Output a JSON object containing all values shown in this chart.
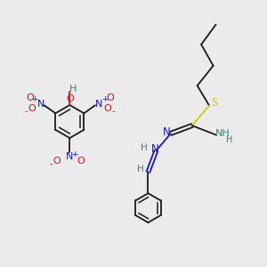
{
  "background_color": "#ebebeb",
  "fig_width": 3.0,
  "fig_height": 3.0,
  "dpi": 100,
  "bond_color": "#1a1a1a",
  "bond_lw": 1.3,
  "colors": {
    "C": "#1a1a1a",
    "N": "#1414cc",
    "O": "#cc1414",
    "S": "#cccc00",
    "H": "#3d8080"
  }
}
